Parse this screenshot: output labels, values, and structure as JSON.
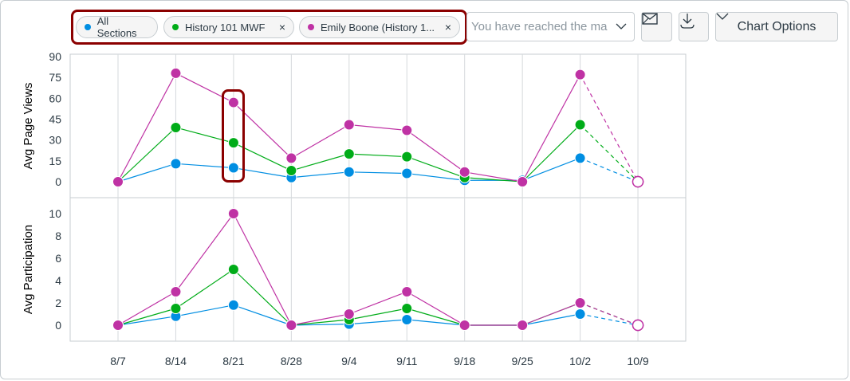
{
  "toolbar": {
    "filters": [
      {
        "label": "All Sections",
        "color": "#008EE2",
        "removable": false
      },
      {
        "label": "History 101 MWF",
        "color": "#00AC18",
        "removable": true
      },
      {
        "label": "Emily Boone (History 1...",
        "color": "#BF32A4",
        "removable": true
      }
    ],
    "remove_icon": "×",
    "search_placeholder": "You have reached the ma",
    "mail_icon": "mail-icon",
    "download_icon": "download-icon",
    "chart_options_label": "Chart Options"
  },
  "chart_data": [
    {
      "type": "line",
      "ylabel": "Avg Page Views",
      "ylim": [
        0,
        90
      ],
      "yticks": [
        0,
        15,
        30,
        45,
        60,
        75,
        90
      ],
      "categories": [
        "8/7",
        "8/14",
        "8/21",
        "8/28",
        "9/4",
        "9/11",
        "9/18",
        "9/25",
        "10/2",
        "10/9"
      ],
      "series": [
        {
          "color": "#008EE2",
          "values": [
            0,
            13,
            10,
            3,
            7,
            6,
            1,
            1,
            17,
            0
          ]
        },
        {
          "color": "#00AC18",
          "values": [
            0,
            39,
            28,
            8,
            20,
            18,
            3,
            0,
            41,
            0
          ]
        },
        {
          "color": "#BF32A4",
          "values": [
            0,
            78,
            57,
            17,
            41,
            37,
            7,
            0,
            77,
            0
          ]
        }
      ],
      "last_point_projected": true,
      "grid": "vertical"
    },
    {
      "type": "line",
      "ylabel": "Avg Participation",
      "ylim": [
        0,
        10
      ],
      "yticks": [
        0,
        2,
        4,
        6,
        8,
        10
      ],
      "categories": [
        "8/7",
        "8/14",
        "8/21",
        "8/28",
        "9/4",
        "9/11",
        "9/18",
        "9/25",
        "10/2",
        "10/9"
      ],
      "series": [
        {
          "color": "#008EE2",
          "values": [
            0,
            0.8,
            1.8,
            0,
            0.1,
            0.5,
            0,
            0,
            1,
            0
          ]
        },
        {
          "color": "#00AC18",
          "values": [
            0,
            1.5,
            5,
            0,
            0.5,
            1.5,
            0,
            0,
            2,
            0
          ]
        },
        {
          "color": "#BF32A4",
          "values": [
            0,
            3,
            10,
            0,
            1,
            3,
            0,
            0,
            2,
            0
          ]
        }
      ],
      "last_point_projected": true,
      "grid": "vertical"
    }
  ]
}
